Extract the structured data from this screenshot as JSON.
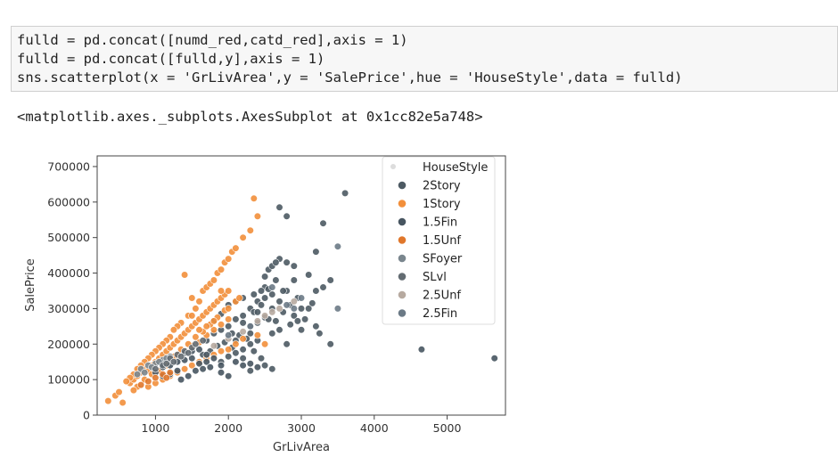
{
  "code": {
    "lines": [
      "fulld = pd.concat([numd_red,catd_red],axis = 1)",
      "fulld = pd.concat([fulld,y],axis = 1)",
      "sns.scatterplot(x = 'GrLivArea',y = 'SalePrice',hue = 'HouseStyle',data = fulld)"
    ]
  },
  "output_text": "<matplotlib.axes._subplots.AxesSubplot at 0x1cc82e5a748>",
  "chart_data": {
    "type": "scatter",
    "xlabel": "GrLivArea",
    "ylabel": "SalePrice",
    "xlim": [
      200,
      5800
    ],
    "ylim": [
      0,
      730000
    ],
    "xticks": [
      1000,
      2000,
      3000,
      4000,
      5000
    ],
    "yticks": [
      0,
      100000,
      200000,
      300000,
      400000,
      500000,
      600000,
      700000
    ],
    "grid": false,
    "legend": {
      "placement": "top-right",
      "title": "HouseStyle",
      "entries": [
        {
          "name": "2Story",
          "color": "#4d5a63"
        },
        {
          "name": "1Story",
          "color": "#f28f3b"
        },
        {
          "name": "1.5Fin",
          "color": "#475560"
        },
        {
          "name": "1.5Unf",
          "color": "#e0772b"
        },
        {
          "name": "SFoyer",
          "color": "#7a868e"
        },
        {
          "name": "SLvl",
          "color": "#636c72"
        },
        {
          "name": "2.5Unf",
          "color": "#b7aaa0"
        },
        {
          "name": "2.5Fin",
          "color": "#6b7a86"
        }
      ]
    },
    "series": [
      {
        "name": "2Story",
        "points": [
          [
            1700,
            210000
          ],
          [
            1800,
            230000
          ],
          [
            1900,
            240000
          ],
          [
            2000,
            250000
          ],
          [
            2100,
            270000
          ],
          [
            2200,
            280000
          ],
          [
            2300,
            300000
          ],
          [
            2400,
            320000
          ],
          [
            2500,
            330000
          ],
          [
            2200,
            260000
          ],
          [
            2050,
            230000
          ],
          [
            1950,
            205000
          ],
          [
            1850,
            195000
          ],
          [
            2300,
            250000
          ],
          [
            2400,
            260000
          ],
          [
            2500,
            275000
          ],
          [
            2600,
            300000
          ],
          [
            2700,
            320000
          ],
          [
            2800,
            350000
          ],
          [
            2900,
            380000
          ],
          [
            2600,
            340000
          ],
          [
            2450,
            310000
          ],
          [
            2350,
            290000
          ],
          [
            2150,
            225000
          ],
          [
            2050,
            190000
          ],
          [
            1750,
            180000
          ],
          [
            1650,
            170000
          ],
          [
            2550,
            270000
          ],
          [
            2650,
            265000
          ],
          [
            2750,
            290000
          ],
          [
            2850,
            310000
          ],
          [
            2950,
            330000
          ],
          [
            3000,
            300000
          ],
          [
            2400,
            210000
          ],
          [
            2300,
            200000
          ],
          [
            2200,
            185000
          ],
          [
            2100,
            175000
          ],
          [
            2700,
            585000
          ],
          [
            2800,
            560000
          ],
          [
            3600,
            625000
          ],
          [
            3300,
            540000
          ],
          [
            3200,
            460000
          ],
          [
            2700,
            440000
          ],
          [
            2800,
            430000
          ],
          [
            2900,
            420000
          ],
          [
            3400,
            380000
          ],
          [
            3100,
            300000
          ],
          [
            3000,
            240000
          ],
          [
            3200,
            250000
          ],
          [
            3250,
            230000
          ],
          [
            3400,
            200000
          ],
          [
            3100,
            395000
          ],
          [
            2500,
            360000
          ],
          [
            2650,
            380000
          ],
          [
            2400,
            290000
          ],
          [
            2300,
            230000
          ],
          [
            2600,
            230000
          ],
          [
            2700,
            240000
          ],
          [
            2000,
            310000
          ],
          [
            2100,
            320000
          ],
          [
            2200,
            330000
          ],
          [
            1900,
            285000
          ],
          [
            1800,
            265000
          ],
          [
            2750,
            350000
          ],
          [
            2350,
            340000
          ],
          [
            2450,
            350000
          ],
          [
            2550,
            355000
          ],
          [
            2100,
            210000
          ],
          [
            2250,
            215000
          ],
          [
            2350,
            180000
          ],
          [
            2450,
            160000
          ],
          [
            2500,
            140000
          ],
          [
            2600,
            130000
          ],
          [
            2300,
            125000
          ],
          [
            2200,
            160000
          ],
          [
            2000,
            165000
          ],
          [
            1900,
            150000
          ],
          [
            2800,
            200000
          ],
          [
            2850,
            255000
          ],
          [
            2900,
            280000
          ],
          [
            2950,
            265000
          ],
          [
            3050,
            270000
          ],
          [
            3150,
            315000
          ],
          [
            3200,
            350000
          ],
          [
            3300,
            360000
          ],
          [
            2500,
            390000
          ],
          [
            2550,
            410000
          ],
          [
            2600,
            420000
          ],
          [
            2650,
            430000
          ]
        ]
      },
      {
        "name": "1Story",
        "points": [
          [
            350,
            40000
          ],
          [
            450,
            55000
          ],
          [
            500,
            65000
          ],
          [
            550,
            35000
          ],
          [
            650,
            90000
          ],
          [
            700,
            100000
          ],
          [
            750,
            110000
          ],
          [
            800,
            120000
          ],
          [
            850,
            130000
          ],
          [
            900,
            125000
          ],
          [
            950,
            140000
          ],
          [
            1000,
            150000
          ],
          [
            1050,
            160000
          ],
          [
            1100,
            170000
          ],
          [
            1150,
            180000
          ],
          [
            1200,
            190000
          ],
          [
            1250,
            200000
          ],
          [
            1300,
            210000
          ],
          [
            1350,
            220000
          ],
          [
            1400,
            230000
          ],
          [
            1450,
            240000
          ],
          [
            1500,
            250000
          ],
          [
            1550,
            260000
          ],
          [
            1600,
            270000
          ],
          [
            1650,
            280000
          ],
          [
            1700,
            290000
          ],
          [
            1750,
            300000
          ],
          [
            1800,
            310000
          ],
          [
            1850,
            320000
          ],
          [
            1900,
            330000
          ],
          [
            1950,
            340000
          ],
          [
            2000,
            350000
          ],
          [
            1600,
            320000
          ],
          [
            1650,
            350000
          ],
          [
            1700,
            360000
          ],
          [
            1750,
            370000
          ],
          [
            1800,
            380000
          ],
          [
            1850,
            400000
          ],
          [
            1900,
            410000
          ],
          [
            1950,
            430000
          ],
          [
            2000,
            440000
          ],
          [
            2050,
            460000
          ],
          [
            2100,
            470000
          ],
          [
            2200,
            500000
          ],
          [
            2300,
            520000
          ],
          [
            2350,
            610000
          ],
          [
            2400,
            560000
          ],
          [
            1400,
            395000
          ],
          [
            1500,
            330000
          ],
          [
            1550,
            300000
          ],
          [
            1450,
            280000
          ],
          [
            1350,
            260000
          ],
          [
            1300,
            250000
          ],
          [
            1250,
            240000
          ],
          [
            1200,
            220000
          ],
          [
            1150,
            210000
          ],
          [
            1100,
            200000
          ],
          [
            1050,
            190000
          ],
          [
            1000,
            180000
          ],
          [
            950,
            170000
          ],
          [
            900,
            160000
          ],
          [
            850,
            150000
          ],
          [
            800,
            140000
          ],
          [
            750,
            130000
          ],
          [
            700,
            115000
          ],
          [
            650,
            105000
          ],
          [
            600,
            95000
          ],
          [
            900,
            80000
          ],
          [
            1000,
            90000
          ],
          [
            1100,
            100000
          ],
          [
            1200,
            110000
          ],
          [
            1300,
            120000
          ],
          [
            1400,
            130000
          ],
          [
            1500,
            140000
          ],
          [
            1600,
            150000
          ],
          [
            1700,
            160000
          ],
          [
            1800,
            170000
          ],
          [
            1900,
            180000
          ],
          [
            2000,
            185000
          ],
          [
            2100,
            200000
          ],
          [
            2200,
            215000
          ],
          [
            2400,
            225000
          ],
          [
            2500,
            200000
          ],
          [
            1300,
            170000
          ],
          [
            1400,
            180000
          ],
          [
            1500,
            195000
          ],
          [
            1600,
            205000
          ],
          [
            1700,
            225000
          ],
          [
            1800,
            240000
          ],
          [
            1900,
            255000
          ],
          [
            2000,
            270000
          ],
          [
            1550,
            220000
          ],
          [
            1650,
            235000
          ],
          [
            1750,
            255000
          ],
          [
            1850,
            275000
          ],
          [
            1950,
            295000
          ],
          [
            1450,
            200000
          ],
          [
            1350,
            185000
          ],
          [
            1250,
            165000
          ],
          [
            1150,
            140000
          ],
          [
            1050,
            125000
          ],
          [
            950,
            115000
          ],
          [
            850,
            100000
          ],
          [
            750,
            80000
          ],
          [
            700,
            70000
          ],
          [
            1600,
            240000
          ],
          [
            1700,
            250000
          ],
          [
            1800,
            265000
          ],
          [
            2000,
            300000
          ],
          [
            2100,
            320000
          ],
          [
            2150,
            330000
          ],
          [
            1900,
            350000
          ],
          [
            1500,
            280000
          ]
        ]
      },
      {
        "name": "1.5Fin",
        "points": [
          [
            1000,
            120000
          ],
          [
            1100,
            135000
          ],
          [
            1200,
            140000
          ],
          [
            1300,
            150000
          ],
          [
            1400,
            155000
          ],
          [
            1500,
            160000
          ],
          [
            1600,
            145000
          ],
          [
            1700,
            150000
          ],
          [
            1300,
            125000
          ],
          [
            1200,
            115000
          ],
          [
            1100,
            110000
          ],
          [
            1400,
            175000
          ],
          [
            1500,
            180000
          ],
          [
            1600,
            185000
          ],
          [
            1700,
            170000
          ],
          [
            1800,
            160000
          ],
          [
            1900,
            140000
          ],
          [
            1350,
            100000
          ],
          [
            1450,
            110000
          ],
          [
            1550,
            125000
          ],
          [
            1650,
            130000
          ],
          [
            1750,
            135000
          ],
          [
            4650,
            185000
          ],
          [
            5650,
            160000
          ],
          [
            2100,
            150000
          ],
          [
            2200,
            140000
          ],
          [
            2300,
            145000
          ],
          [
            2400,
            135000
          ],
          [
            1900,
            120000
          ],
          [
            2000,
            110000
          ]
        ]
      },
      {
        "name": "1.5Unf",
        "points": [
          [
            900,
            95000
          ],
          [
            1000,
            105000
          ],
          [
            1100,
            115000
          ],
          [
            800,
            85000
          ],
          [
            1200,
            120000
          ],
          [
            1150,
            105000
          ]
        ]
      },
      {
        "name": "SFoyer",
        "points": [
          [
            800,
            130000
          ],
          [
            900,
            140000
          ],
          [
            1000,
            145000
          ],
          [
            1100,
            155000
          ],
          [
            950,
            135000
          ],
          [
            1050,
            150000
          ],
          [
            850,
            120000
          ],
          [
            1200,
            165000
          ],
          [
            1150,
            160000
          ],
          [
            750,
            115000
          ]
        ]
      },
      {
        "name": "SLvl",
        "points": [
          [
            1000,
            130000
          ],
          [
            1100,
            140000
          ],
          [
            1200,
            160000
          ],
          [
            1300,
            170000
          ],
          [
            1400,
            180000
          ],
          [
            1500,
            190000
          ],
          [
            1250,
            150000
          ],
          [
            1350,
            165000
          ],
          [
            1450,
            175000
          ],
          [
            1150,
            145000
          ],
          [
            1550,
            200000
          ],
          [
            1650,
            210000
          ]
        ]
      },
      {
        "name": "2.5Unf",
        "points": [
          [
            1800,
            195000
          ],
          [
            2000,
            215000
          ],
          [
            2200,
            235000
          ],
          [
            2500,
            280000
          ],
          [
            2700,
            300000
          ],
          [
            2900,
            320000
          ],
          [
            2400,
            265000
          ],
          [
            2600,
            290000
          ]
        ]
      },
      {
        "name": "2.5Fin",
        "points": [
          [
            2300,
            250000
          ],
          [
            2600,
            360000
          ],
          [
            3500,
            475000
          ],
          [
            2900,
            300000
          ],
          [
            3000,
            330000
          ],
          [
            3500,
            300000
          ],
          [
            2000,
            225000
          ],
          [
            2800,
            310000
          ]
        ]
      }
    ]
  }
}
